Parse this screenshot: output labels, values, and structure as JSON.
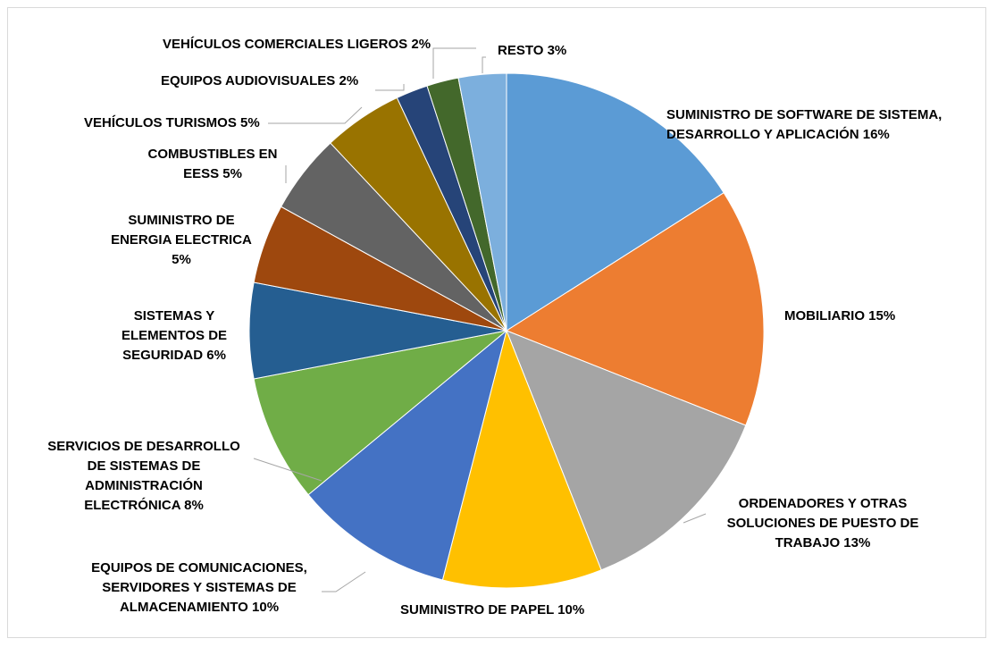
{
  "chart_data": {
    "type": "pie",
    "title": "",
    "slices": [
      {
        "label": "SUMINISTRO DE SOFTWARE DE SISTEMA,\nDESARROLLO Y APLICACIÓN  16%",
        "value": 16,
        "color": "#5B9BD5"
      },
      {
        "label": "MOBILIARIO 15%",
        "value": 15,
        "color": "#ED7D31"
      },
      {
        "label": "ORDENADORES Y OTRAS\nSOLUCIONES DE PUESTO DE\nTRABAJO 13%",
        "value": 13,
        "color": "#A5A5A5"
      },
      {
        "label": "SUMINISTRO DE PAPEL  10%",
        "value": 10,
        "color": "#FFC000"
      },
      {
        "label": "EQUIPOS DE COMUNICACIONES,\nSERVIDORES Y SISTEMAS DE\nALMACENAMIENTO 10%",
        "value": 10,
        "color": "#4472C4"
      },
      {
        "label": "SERVICIOS DE DESARROLLO\nDE SISTEMAS DE\nADMINISTRACIÓN\nELECTRÓNICA 8%",
        "value": 8,
        "color": "#70AD47"
      },
      {
        "label": "SISTEMAS Y\nELEMENTOS DE\nSEGURIDAD 6%",
        "value": 6,
        "color": "#255E91"
      },
      {
        "label": "SUMINISTRO DE\nENERGIA ELECTRICA\n5%",
        "value": 5,
        "color": "#9E480E"
      },
      {
        "label": "COMBUSTIBLES EN\nEESS 5%",
        "value": 5,
        "color": "#636363"
      },
      {
        "label": "VEHÍCULOS TURISMOS 5%",
        "value": 5,
        "color": "#997300"
      },
      {
        "label": "EQUIPOS AUDIOVISUALES 2%",
        "value": 2,
        "color": "#264478"
      },
      {
        "label": "VEHÍCULOS COMERCIALES LIGEROS 2%",
        "value": 2,
        "color": "#43682B"
      },
      {
        "label": "RESTO 3%",
        "value": 3,
        "color": "#7CAFDD"
      }
    ],
    "leader_line_color": "#a6a6a6",
    "legend": "none"
  }
}
